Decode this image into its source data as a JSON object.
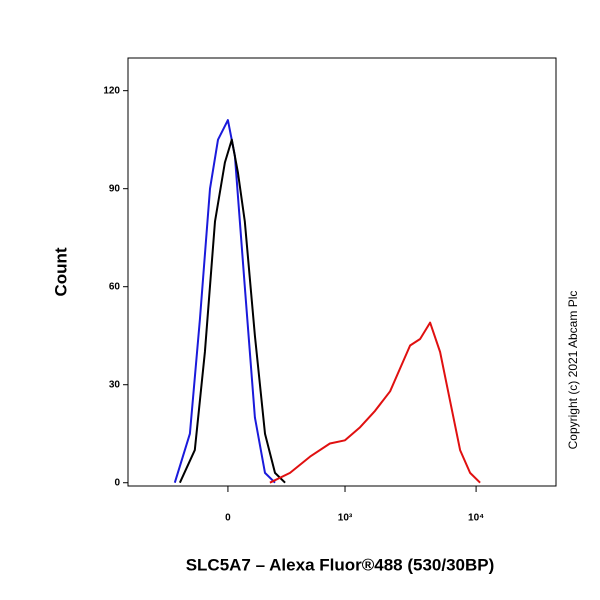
{
  "chart_data": {
    "type": "line",
    "xlabel": "SLC5A7 – Alexa Fluor®488 (530/30BP)",
    "ylabel": "Count",
    "annotation": "Copyright (c) 2021 Abcam Plc",
    "xscale": "biexponential",
    "xlim": [
      -731,
      40300
    ],
    "xticks": [
      {
        "value": 0,
        "label": "0"
      },
      {
        "value": 1000,
        "label": "10³"
      },
      {
        "value": 10000,
        "label": "10⁴"
      }
    ],
    "ylim": [
      -1,
      130
    ],
    "yticks": [
      0,
      30,
      60,
      90,
      120
    ],
    "series": [
      {
        "color": "#1a1adb",
        "x": [
          -281,
          -188,
          -134,
          -84,
          -46,
          0,
          32,
          79,
          129,
          183,
          242
        ],
        "values": [
          0,
          15,
          50,
          90,
          105,
          111,
          100,
          60,
          20,
          3,
          0
        ]
      },
      {
        "color": "#000000",
        "x": [
          -248,
          -161,
          -109,
          -60,
          -14,
          18,
          46,
          79,
          129,
          183,
          242,
          309
        ],
        "values": [
          0,
          10,
          40,
          80,
          98,
          105,
          95,
          80,
          45,
          15,
          3,
          0
        ]
      },
      {
        "color": "#e01010",
        "x": [
          211,
          345,
          522,
          759,
          1000,
          1309,
          1706,
          2223,
          2650,
          3157,
          3762,
          4480,
          5335,
          6354,
          7569,
          9013,
          10732
        ],
        "values": [
          0,
          3,
          8,
          12,
          13,
          17,
          22,
          28,
          35,
          42,
          44,
          49,
          40,
          25,
          10,
          3,
          0
        ]
      }
    ]
  }
}
